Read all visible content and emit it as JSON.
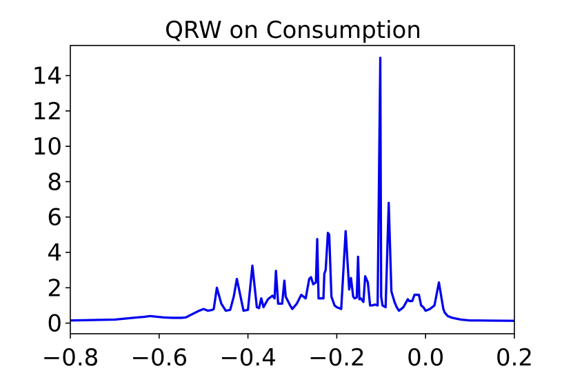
{
  "chart_data": {
    "type": "line",
    "title": "QRW on Consumption",
    "xlabel": "",
    "ylabel": "",
    "xlim": [
      -0.8,
      0.2
    ],
    "ylim": [
      -0.6,
      15.7
    ],
    "x_ticks": [
      -0.8,
      -0.6,
      -0.4,
      -0.2,
      0.0,
      0.2
    ],
    "x_tick_labels": [
      "−0.8",
      "−0.6",
      "−0.4",
      "−0.2",
      "0.0",
      "0.2"
    ],
    "y_ticks": [
      0,
      2,
      4,
      6,
      8,
      10,
      12,
      14
    ],
    "y_tick_labels": [
      "0",
      "2",
      "4",
      "6",
      "8",
      "10",
      "12",
      "14"
    ],
    "grid": false,
    "legend": "none",
    "series": [
      {
        "color": "#0000ee",
        "x": [
          -0.8,
          -0.7,
          -0.65,
          -0.635,
          -0.62,
          -0.59,
          -0.57,
          -0.55,
          -0.54,
          -0.53,
          -0.51,
          -0.5,
          -0.49,
          -0.48,
          -0.477,
          -0.47,
          -0.46,
          -0.45,
          -0.44,
          -0.432,
          -0.425,
          -0.41,
          -0.4,
          -0.395,
          -0.39,
          -0.38,
          -0.375,
          -0.37,
          -0.365,
          -0.355,
          -0.345,
          -0.34,
          -0.337,
          -0.332,
          -0.323,
          -0.318,
          -0.315,
          -0.305,
          -0.3,
          -0.29,
          -0.28,
          -0.275,
          -0.27,
          -0.262,
          -0.258,
          -0.253,
          -0.247,
          -0.244,
          -0.241,
          -0.237,
          -0.23,
          -0.228,
          -0.225,
          -0.22,
          -0.217,
          -0.212,
          -0.205,
          -0.2,
          -0.19,
          -0.18,
          -0.172,
          -0.168,
          -0.163,
          -0.16,
          -0.155,
          -0.152,
          -0.149,
          -0.146,
          -0.14,
          -0.136,
          -0.13,
          -0.125,
          -0.12,
          -0.114,
          -0.108,
          -0.102,
          -0.1,
          -0.097,
          -0.09,
          -0.083,
          -0.077,
          -0.07,
          -0.065,
          -0.06,
          -0.05,
          -0.04,
          -0.037,
          -0.03,
          -0.025,
          -0.015,
          -0.01,
          -0.005,
          0.0,
          0.01,
          0.02,
          0.03,
          0.04,
          0.043,
          0.05,
          0.06,
          0.07,
          0.08,
          0.1,
          0.12,
          0.15,
          0.2
        ],
        "y": [
          0.15,
          0.2,
          0.32,
          0.35,
          0.4,
          0.32,
          0.3,
          0.3,
          0.32,
          0.45,
          0.7,
          0.8,
          0.7,
          0.75,
          0.8,
          2.0,
          1.1,
          0.7,
          0.75,
          1.5,
          2.5,
          0.7,
          0.75,
          2.0,
          3.25,
          0.9,
          0.85,
          1.4,
          0.9,
          1.35,
          1.55,
          1.4,
          2.95,
          1.1,
          1.1,
          2.4,
          1.5,
          1.0,
          0.8,
          1.1,
          1.6,
          1.5,
          1.4,
          2.5,
          2.6,
          2.2,
          2.3,
          4.75,
          1.4,
          1.4,
          1.4,
          2.8,
          3.0,
          5.1,
          5.0,
          1.5,
          1.0,
          0.9,
          0.8,
          5.2,
          1.9,
          2.55,
          1.5,
          1.4,
          1.45,
          3.75,
          1.35,
          1.4,
          1.2,
          2.65,
          2.3,
          1.0,
          1.0,
          1.05,
          1.0,
          15.0,
          1.5,
          1.0,
          0.9,
          6.8,
          1.8,
          1.2,
          0.9,
          0.7,
          0.9,
          1.35,
          1.25,
          1.25,
          1.6,
          1.6,
          1.0,
          0.9,
          0.7,
          0.8,
          1.0,
          2.3,
          0.8,
          0.6,
          0.4,
          0.3,
          0.25,
          0.2,
          0.15,
          0.15,
          0.14,
          0.13
        ]
      }
    ]
  }
}
